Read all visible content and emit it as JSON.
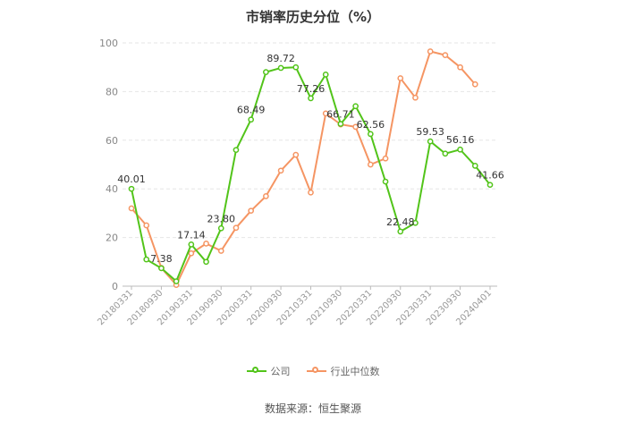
{
  "chart_data": {
    "type": "line",
    "title": "市销率历史分位（%）",
    "ylim": [
      0,
      100
    ],
    "yticks": [
      0,
      20,
      40,
      60,
      80,
      100
    ],
    "xtick_labels": [
      "20180331",
      "20180930",
      "20190331",
      "20190930",
      "20200331",
      "20200930",
      "20210331",
      "20210930",
      "20220331",
      "20220930",
      "20230331",
      "20230930",
      "20240401"
    ],
    "grid": true,
    "legend_position": "bottom",
    "series": [
      {
        "name": "公司",
        "color": "#52c41a",
        "values": [
          40.01,
          11.0,
          7.38,
          2.0,
          17.14,
          10.0,
          23.8,
          56.0,
          68.49,
          88.0,
          89.72,
          90.0,
          77.26,
          87.0,
          66.71,
          74.0,
          62.56,
          43.0,
          22.48,
          26.0,
          59.53,
          54.5,
          56.16,
          49.5,
          41.66
        ],
        "labels": {
          "0": "40.01",
          "2": "7.38",
          "4": "17.14",
          "6": "23.80",
          "8": "68.49",
          "10": "89.72",
          "12": "77.26",
          "14": "66.71",
          "16": "62.56",
          "18": "22.48",
          "20": "59.53",
          "22": "56.16",
          "24": "41.66"
        }
      },
      {
        "name": "行业中位数",
        "color": "#f59563",
        "values": [
          32.0,
          25.0,
          7.5,
          0.5,
          13.5,
          17.5,
          14.5,
          24.0,
          31.0,
          37.0,
          47.5,
          54.0,
          38.5,
          71.0,
          66.5,
          65.5,
          50.0,
          52.5,
          85.5,
          77.5,
          96.5,
          95.0,
          90.0,
          83.0
        ]
      }
    ]
  },
  "source_text": "数据来源：恒生聚源"
}
